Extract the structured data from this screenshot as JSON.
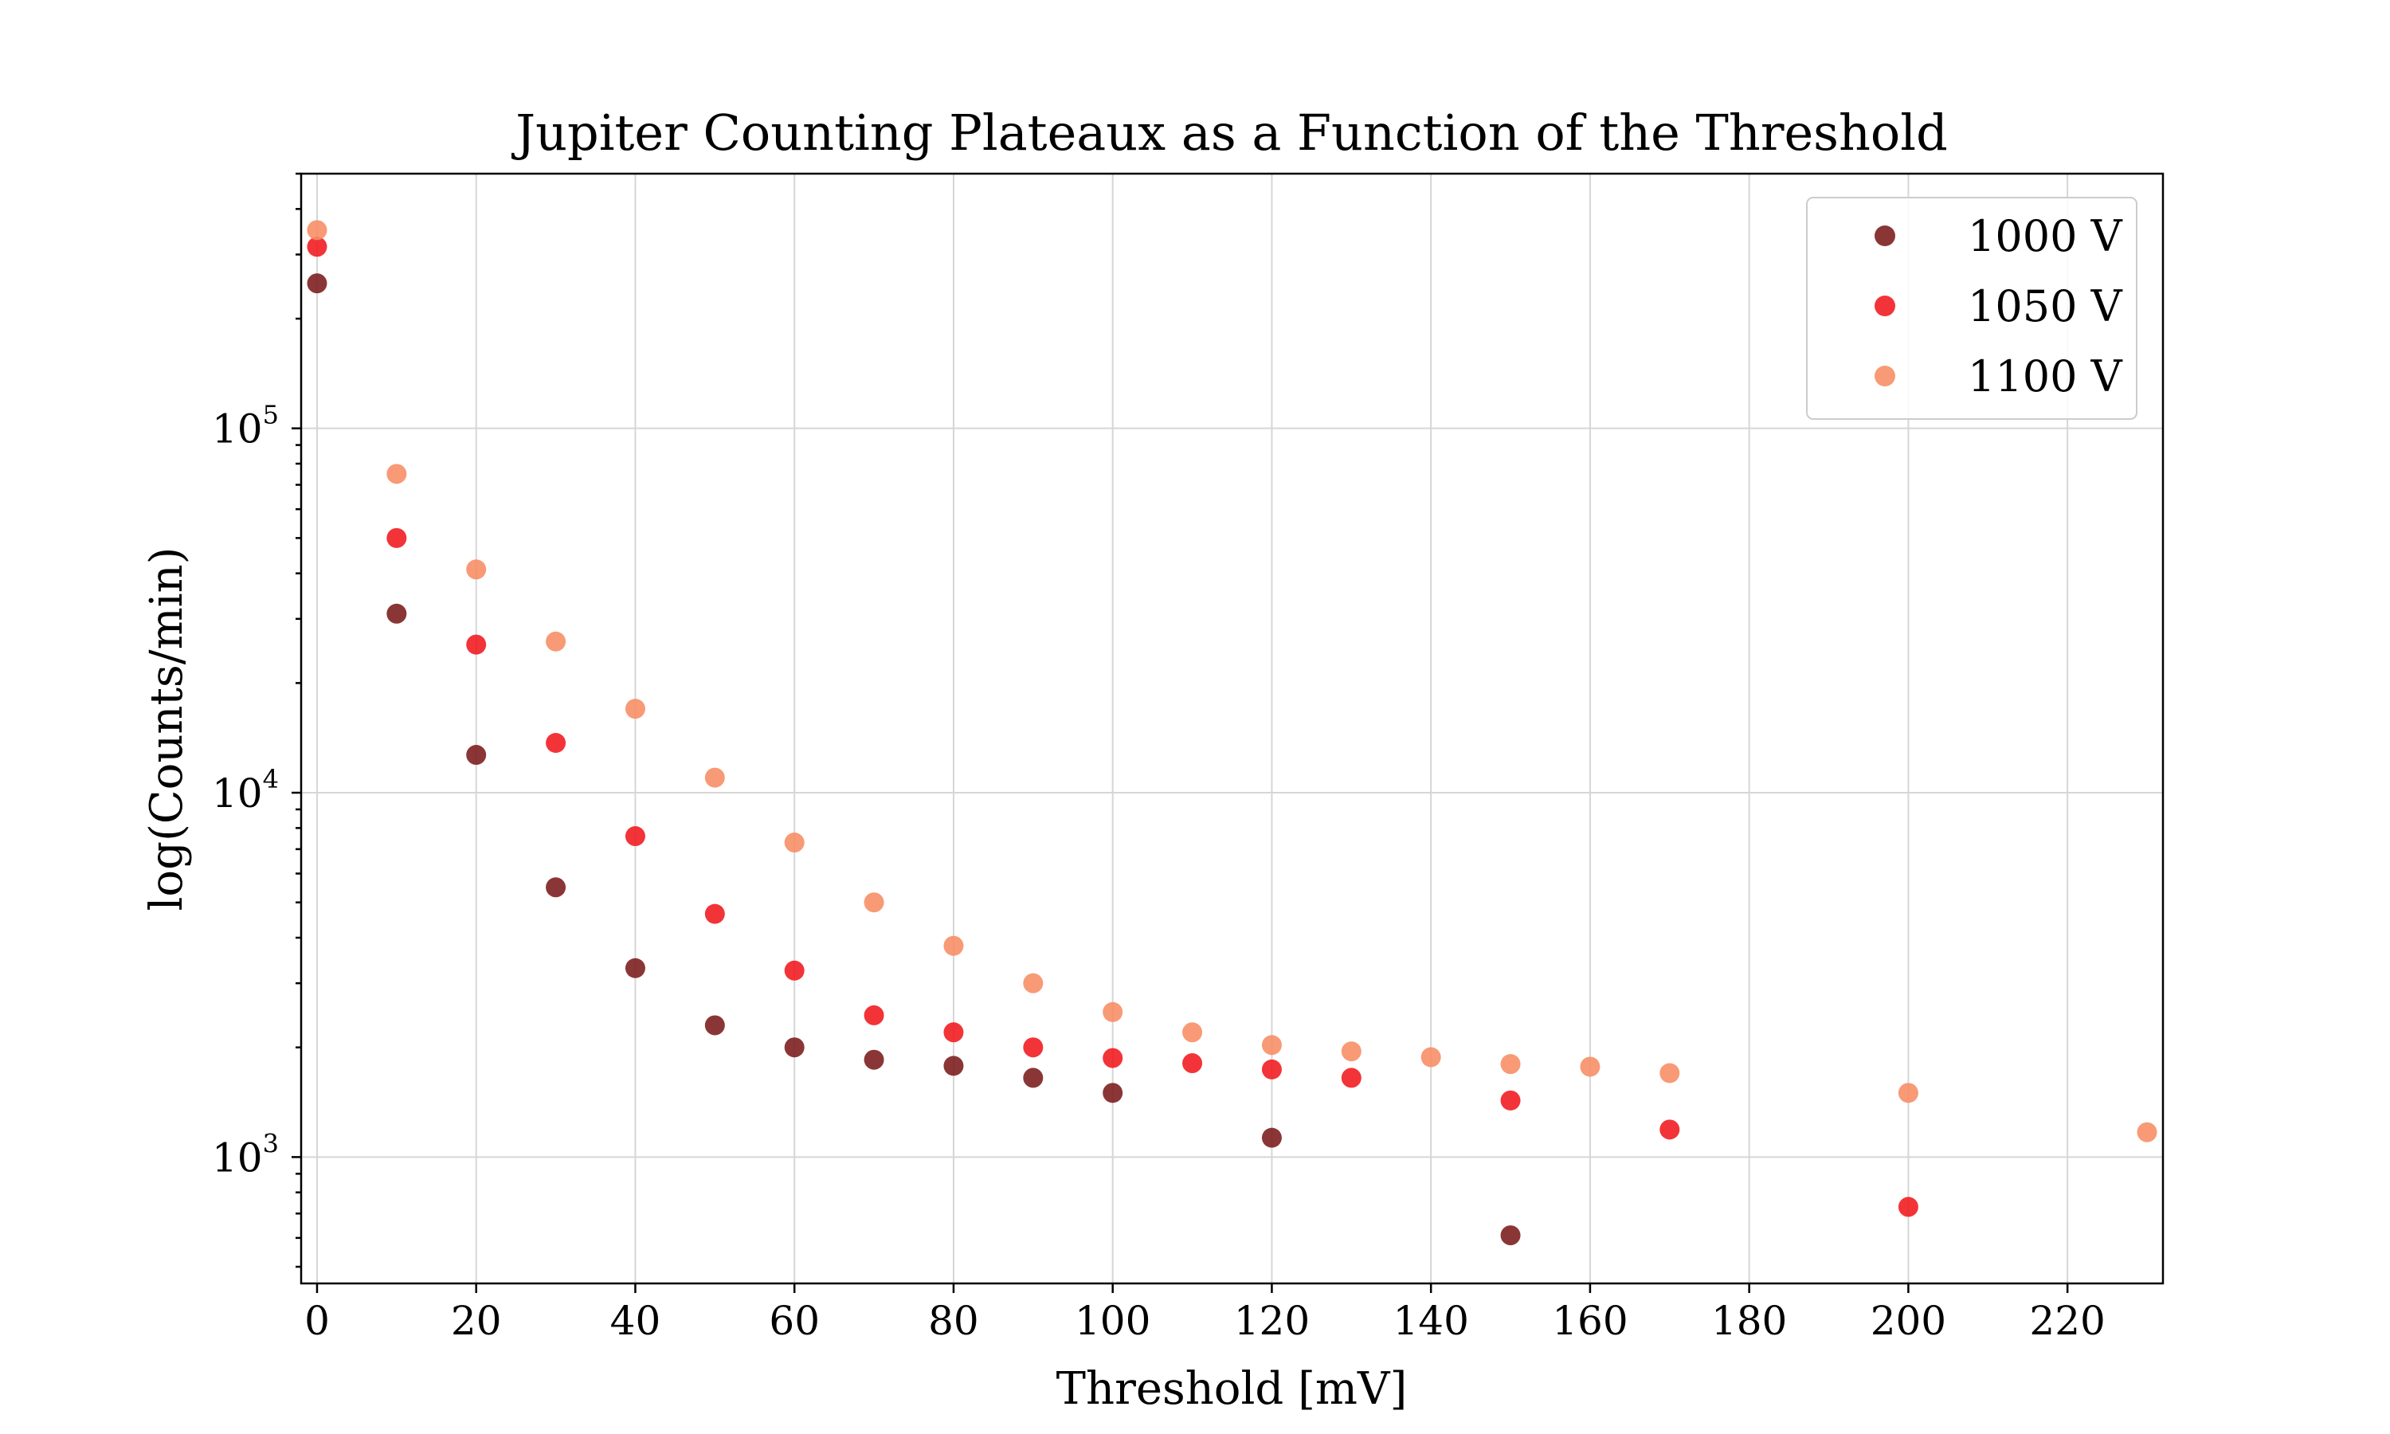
{
  "chart_data": {
    "type": "scatter",
    "title": "Jupiter Counting Plateaux as a Function of the Threshold",
    "xlabel": "Threshold [mV]",
    "ylabel": "log(Counts/min)",
    "xlim": [
      -2,
      232
    ],
    "ylim": [
      450,
      500000
    ],
    "yscale": "log",
    "grid": true,
    "legend_position": "top-right",
    "x_ticks": [
      0,
      20,
      40,
      60,
      80,
      100,
      120,
      140,
      160,
      180,
      200,
      220
    ],
    "y_ticks": [
      {
        "value": 1000,
        "base": "10",
        "exp": "3"
      },
      {
        "value": 10000,
        "base": "10",
        "exp": "4"
      },
      {
        "value": 100000,
        "base": "10",
        "exp": "5"
      }
    ],
    "series": [
      {
        "name": "1000 V",
        "color": "#7b1a1a",
        "x": [
          0,
          10,
          20,
          30,
          40,
          50,
          60,
          70,
          80,
          90,
          100,
          120,
          150
        ],
        "y": [
          250000,
          31000,
          12700,
          5500,
          3300,
          2300,
          2000,
          1850,
          1780,
          1650,
          1500,
          1130,
          610
        ]
      },
      {
        "name": "1050 V",
        "color": "#f0181c",
        "x": [
          0,
          10,
          20,
          30,
          40,
          50,
          60,
          70,
          80,
          90,
          100,
          110,
          120,
          130,
          150,
          170,
          200
        ],
        "y": [
          315000,
          50000,
          25500,
          13700,
          7600,
          4650,
          3250,
          2450,
          2200,
          2000,
          1870,
          1810,
          1740,
          1650,
          1430,
          1190,
          730
        ]
      },
      {
        "name": "1100 V",
        "color": "#f78c63",
        "x": [
          0,
          10,
          20,
          30,
          40,
          50,
          60,
          70,
          80,
          90,
          100,
          110,
          120,
          130,
          140,
          150,
          160,
          170,
          200,
          230
        ],
        "y": [
          350000,
          75000,
          41000,
          26000,
          17000,
          11000,
          7300,
          5000,
          3800,
          3000,
          2500,
          2200,
          2030,
          1950,
          1880,
          1800,
          1770,
          1700,
          1500,
          1170
        ]
      }
    ]
  }
}
